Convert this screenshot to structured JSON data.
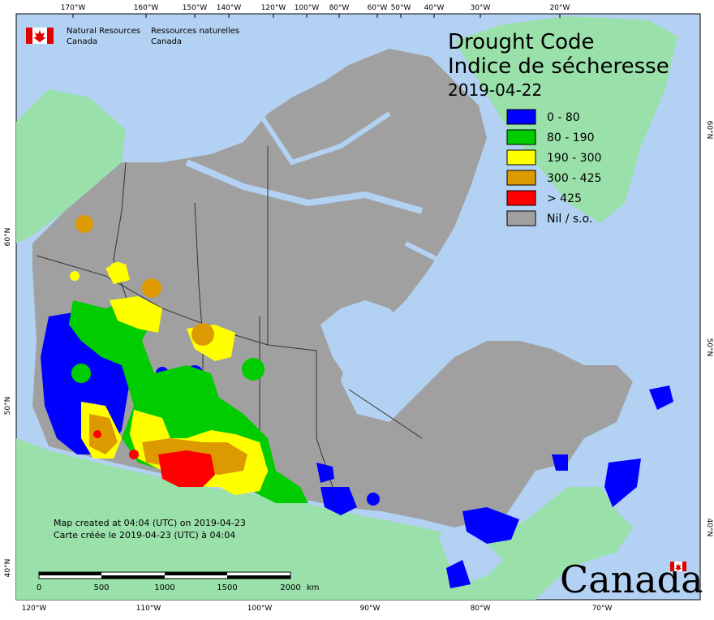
{
  "title_en": "Drought Code",
  "title_fr": "Indice de sécheresse",
  "date": "2019-04-22",
  "agency": {
    "en_line1": "Natural Resources",
    "en_line2": "Canada",
    "fr_line1": "Ressources naturelles",
    "fr_line2": "Canada"
  },
  "legend": [
    {
      "label": "0 - 80",
      "color": "#0000ff"
    },
    {
      "label": "80 - 190",
      "color": "#00cc00"
    },
    {
      "label": "190 - 300",
      "color": "#ffff00"
    },
    {
      "label": "300 - 425",
      "color": "#dd9900"
    },
    {
      "label": "> 425",
      "color": "#ff0000"
    },
    {
      "label": "Nil / s.o.",
      "color": "#a0a0a0"
    }
  ],
  "credit_en": "Map created at 04:04 (UTC) on 2019-04-23",
  "credit_fr": "Carte créée le 2019-04-23 (UTC) à 04:04",
  "scale": {
    "ticks": [
      "0",
      "500",
      "1000",
      "1500",
      "2000"
    ],
    "unit": "km"
  },
  "wordmark": "Canada",
  "top_ticks": [
    "170°W",
    "160°W",
    "150°W",
    "140°W",
    "120°W",
    "100°W",
    "80°W",
    "60°W",
    "50°W",
    "40°W",
    "30°W",
    "20°W"
  ],
  "bottom_ticks": [
    "120°W",
    "110°W",
    "100°W",
    "90°W",
    "80°W",
    "70°W"
  ],
  "left_ticks": [
    "60°N",
    "50°N",
    "40°N"
  ],
  "right_ticks": [
    "60°N",
    "50°N",
    "40°N"
  ],
  "colors": {
    "ocean": "#b3d1f2",
    "land_foreign": "#99e0aa",
    "nil": "#a0a0a0"
  }
}
